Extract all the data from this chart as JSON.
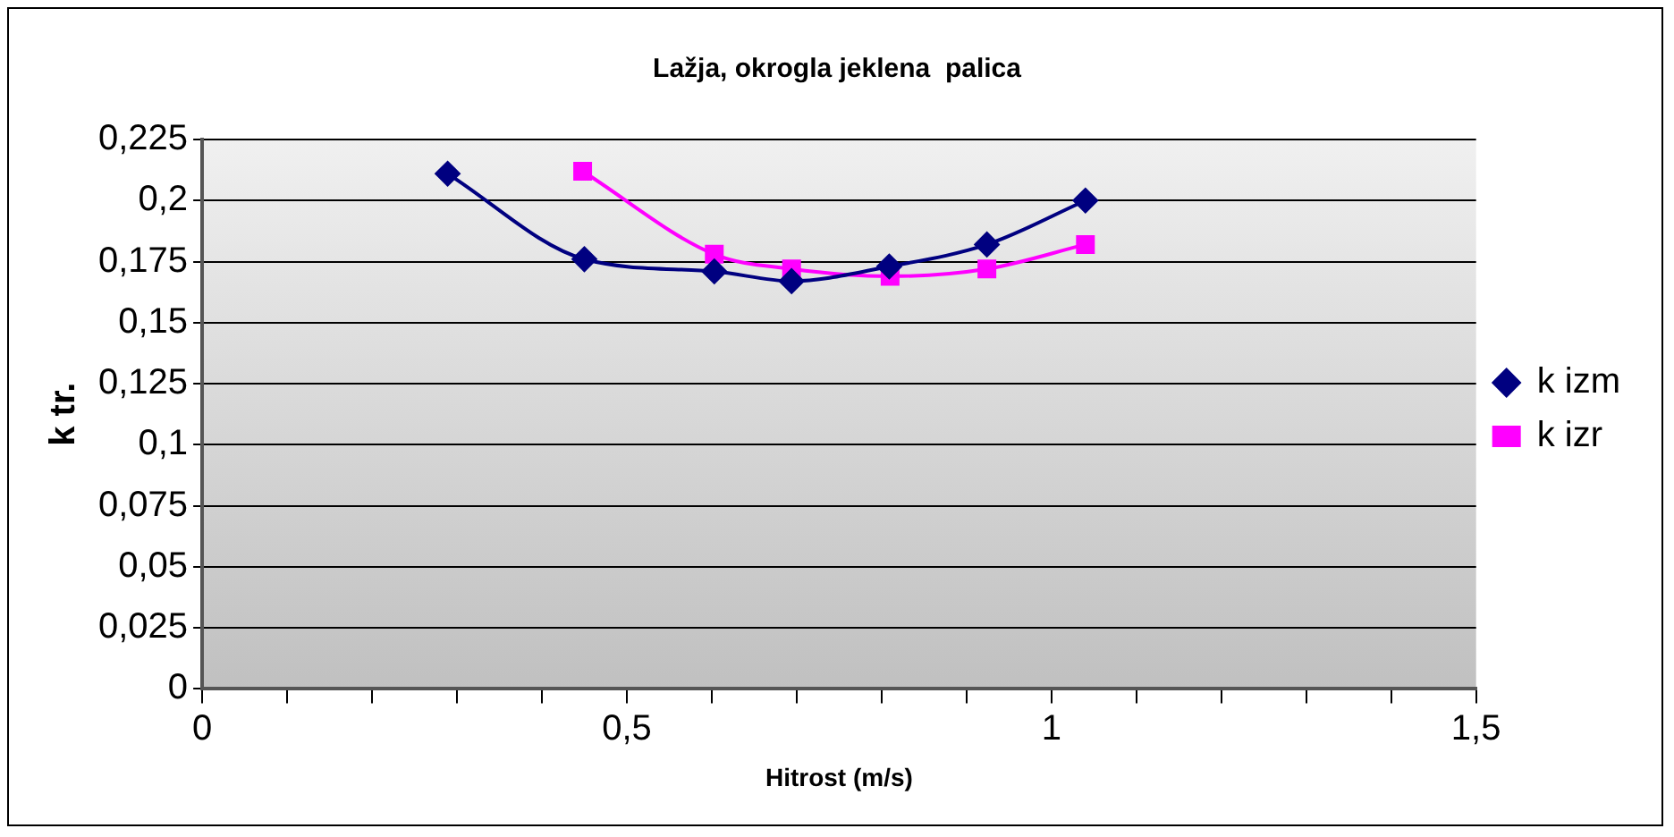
{
  "chart_data": {
    "type": "line",
    "title": "Lažja, okrogla jeklena  palica",
    "xlabel": "Hitrost (m/s)",
    "ylabel": "k tr.",
    "series": [
      {
        "name": "k izm",
        "color": "#000080",
        "marker": "diamond",
        "x": [
          0.289,
          0.45,
          0.603,
          0.694,
          0.809,
          0.924,
          1.04
        ],
        "values": [
          0.211,
          0.176,
          0.171,
          0.167,
          0.173,
          0.182,
          0.2
        ]
      },
      {
        "name": "k izr",
        "color": "#ff00ff",
        "marker": "square",
        "x": [
          0.448,
          0.603,
          0.694,
          0.81,
          0.924,
          1.04
        ],
        "values": [
          0.212,
          0.178,
          0.172,
          0.169,
          0.172,
          0.182
        ]
      }
    ],
    "xlim": [
      0,
      1.5
    ],
    "xticks": [
      0,
      {
        "value": 0.1,
        "label": null
      },
      {
        "value": 0.2,
        "label": null
      },
      {
        "value": 0.3,
        "label": null
      },
      {
        "value": 0.4,
        "label": null
      },
      {
        "value": 0.5,
        "label": "0,5"
      },
      {
        "value": 0.6,
        "label": null
      },
      {
        "value": 0.7,
        "label": null
      },
      {
        "value": 0.8,
        "label": null
      },
      {
        "value": 0.9,
        "label": null
      },
      1,
      {
        "value": 1.1,
        "label": null
      },
      {
        "value": 1.2,
        "label": null
      },
      {
        "value": 1.3,
        "label": null
      },
      {
        "value": 1.4,
        "label": null
      },
      {
        "value": 1.5,
        "label": "1,5"
      }
    ],
    "ylim": [
      0,
      0.225
    ],
    "yticks": [
      0,
      {
        "value": 0.025,
        "label": "0,025"
      },
      {
        "value": 0.05,
        "label": "0,05"
      },
      {
        "value": 0.075,
        "label": "0,075"
      },
      {
        "value": 0.1,
        "label": "0,1"
      },
      {
        "value": 0.125,
        "label": "0,125"
      },
      {
        "value": 0.15,
        "label": "0,15"
      },
      {
        "value": 0.175,
        "label": "0,175"
      },
      {
        "value": 0.2,
        "label": "0,2"
      },
      {
        "value": 0.225,
        "label": "0,225"
      }
    ],
    "grid": "y",
    "legend": "right"
  }
}
